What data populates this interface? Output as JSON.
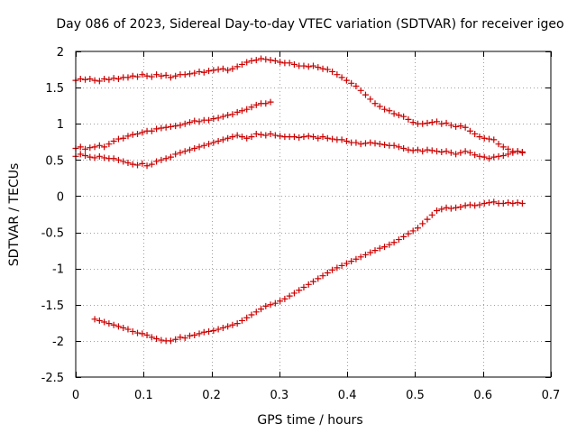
{
  "chart_data": {
    "type": "scatter",
    "title": "Day 086 of 2023, Sidereal Day-to-day VTEC variation (SDTVAR) for receiver igeo",
    "xlabel": "GPS time / hours",
    "ylabel": "SDTVAR / TECUs",
    "xlim": [
      0,
      0.7
    ],
    "ylim": [
      -2.5,
      2
    ],
    "xticks": [
      0,
      0.1,
      0.2,
      0.3,
      0.4,
      0.5,
      0.6,
      0.7
    ],
    "yticks": [
      -2.5,
      -2,
      -1.5,
      -1,
      -0.5,
      0,
      0.5,
      1,
      1.5,
      2
    ],
    "xtick_labels": [
      "0",
      "0.1",
      "0.2",
      "0.3",
      "0.4",
      "0.5",
      "0.6",
      "0.7"
    ],
    "ytick_labels": [
      "-2.5",
      "-2",
      "-1.5",
      "-1",
      "-0.5",
      "0",
      "0.5",
      "1",
      "1.5",
      "2"
    ],
    "grid": true,
    "marker": "+",
    "color": "#cc0000",
    "series": [
      {
        "name": "series-1",
        "x": [
          0.0,
          0.007,
          0.014,
          0.021,
          0.028,
          0.035,
          0.042,
          0.049,
          0.056,
          0.063,
          0.07,
          0.077,
          0.084,
          0.091,
          0.098,
          0.105,
          0.112,
          0.119,
          0.126,
          0.133,
          0.14,
          0.147,
          0.154,
          0.161,
          0.168,
          0.175,
          0.182,
          0.189,
          0.196,
          0.203,
          0.21,
          0.217,
          0.224,
          0.231,
          0.238,
          0.245,
          0.252,
          0.259,
          0.266,
          0.273,
          0.28,
          0.287,
          0.294,
          0.301,
          0.308,
          0.315,
          0.322,
          0.329,
          0.336,
          0.343,
          0.35,
          0.357,
          0.364,
          0.371,
          0.378,
          0.385,
          0.392,
          0.399,
          0.406,
          0.413,
          0.42,
          0.427,
          0.434,
          0.441,
          0.448,
          0.455,
          0.462,
          0.469,
          0.476,
          0.483,
          0.49,
          0.497,
          0.504,
          0.511,
          0.518,
          0.525,
          0.532,
          0.539,
          0.546,
          0.553,
          0.56,
          0.567,
          0.574,
          0.581,
          0.588,
          0.595,
          0.602,
          0.609,
          0.616,
          0.623,
          0.63,
          0.637,
          0.644,
          0.651,
          0.658
        ],
        "y": [
          1.6,
          1.62,
          1.61,
          1.62,
          1.6,
          1.59,
          1.62,
          1.61,
          1.63,
          1.62,
          1.64,
          1.64,
          1.66,
          1.65,
          1.68,
          1.66,
          1.65,
          1.68,
          1.66,
          1.67,
          1.64,
          1.66,
          1.68,
          1.68,
          1.69,
          1.7,
          1.72,
          1.71,
          1.73,
          1.74,
          1.75,
          1.76,
          1.74,
          1.76,
          1.79,
          1.82,
          1.85,
          1.87,
          1.88,
          1.9,
          1.89,
          1.88,
          1.87,
          1.85,
          1.84,
          1.84,
          1.82,
          1.8,
          1.8,
          1.79,
          1.8,
          1.78,
          1.76,
          1.75,
          1.72,
          1.68,
          1.64,
          1.6,
          1.56,
          1.52,
          1.46,
          1.4,
          1.34,
          1.28,
          1.24,
          1.2,
          1.18,
          1.14,
          1.12,
          1.1,
          1.06,
          1.02,
          1.0,
          1.0,
          1.01,
          1.02,
          1.03,
          1.0,
          1.01,
          0.98,
          0.96,
          0.97,
          0.95,
          0.9,
          0.86,
          0.82,
          0.8,
          0.79,
          0.78,
          0.72,
          0.68,
          0.65,
          0.62,
          0.62,
          0.61
        ]
      },
      {
        "name": "series-2",
        "x": [
          0.0,
          0.007,
          0.014,
          0.021,
          0.028,
          0.035,
          0.042,
          0.049,
          0.056,
          0.063,
          0.07,
          0.077,
          0.084,
          0.091,
          0.098,
          0.105,
          0.112,
          0.119,
          0.126,
          0.133,
          0.14,
          0.147,
          0.154,
          0.161,
          0.168,
          0.175,
          0.182,
          0.189,
          0.196,
          0.203,
          0.21,
          0.217,
          0.224,
          0.231,
          0.238,
          0.245,
          0.252,
          0.259,
          0.266,
          0.273,
          0.28,
          0.287
        ],
        "y": [
          0.66,
          0.68,
          0.65,
          0.67,
          0.68,
          0.7,
          0.68,
          0.72,
          0.76,
          0.79,
          0.8,
          0.83,
          0.85,
          0.86,
          0.88,
          0.9,
          0.9,
          0.93,
          0.94,
          0.95,
          0.96,
          0.97,
          0.98,
          1.0,
          1.02,
          1.04,
          1.03,
          1.05,
          1.05,
          1.07,
          1.08,
          1.1,
          1.12,
          1.13,
          1.16,
          1.18,
          1.2,
          1.23,
          1.26,
          1.28,
          1.28,
          1.3
        ]
      },
      {
        "name": "series-3",
        "x": [
          0.0,
          0.007,
          0.014,
          0.021,
          0.028,
          0.035,
          0.042,
          0.049,
          0.056,
          0.063,
          0.07,
          0.077,
          0.084,
          0.091,
          0.098,
          0.105,
          0.112,
          0.119,
          0.126,
          0.133,
          0.14,
          0.147,
          0.154,
          0.161,
          0.168,
          0.175,
          0.182,
          0.189,
          0.196,
          0.203,
          0.21,
          0.217,
          0.224,
          0.231,
          0.238,
          0.245,
          0.252,
          0.259,
          0.266,
          0.273,
          0.28,
          0.287,
          0.294,
          0.301,
          0.308,
          0.315,
          0.322,
          0.329,
          0.336,
          0.343,
          0.35,
          0.357,
          0.364,
          0.371,
          0.378,
          0.385,
          0.392,
          0.399,
          0.406,
          0.413,
          0.42,
          0.427,
          0.434,
          0.441,
          0.448,
          0.455,
          0.462,
          0.469,
          0.476,
          0.483,
          0.49,
          0.497,
          0.504,
          0.511,
          0.518,
          0.525,
          0.532,
          0.539,
          0.546,
          0.553,
          0.56,
          0.567,
          0.574,
          0.581,
          0.588,
          0.595,
          0.602,
          0.609,
          0.616,
          0.623,
          0.63,
          0.637,
          0.644,
          0.651,
          0.658
        ],
        "y": [
          0.55,
          0.58,
          0.56,
          0.54,
          0.53,
          0.55,
          0.53,
          0.52,
          0.52,
          0.5,
          0.48,
          0.46,
          0.44,
          0.43,
          0.45,
          0.42,
          0.44,
          0.48,
          0.5,
          0.52,
          0.54,
          0.58,
          0.6,
          0.62,
          0.64,
          0.66,
          0.68,
          0.7,
          0.72,
          0.74,
          0.76,
          0.78,
          0.8,
          0.82,
          0.84,
          0.82,
          0.8,
          0.82,
          0.86,
          0.85,
          0.84,
          0.86,
          0.84,
          0.83,
          0.82,
          0.82,
          0.82,
          0.81,
          0.82,
          0.83,
          0.82,
          0.8,
          0.82,
          0.8,
          0.79,
          0.78,
          0.78,
          0.76,
          0.74,
          0.74,
          0.72,
          0.73,
          0.74,
          0.73,
          0.72,
          0.71,
          0.7,
          0.7,
          0.68,
          0.66,
          0.64,
          0.63,
          0.64,
          0.62,
          0.64,
          0.63,
          0.62,
          0.61,
          0.62,
          0.6,
          0.58,
          0.6,
          0.62,
          0.6,
          0.57,
          0.55,
          0.54,
          0.52,
          0.54,
          0.55,
          0.56,
          0.58,
          0.6,
          0.62,
          0.6
        ]
      },
      {
        "name": "series-4",
        "x": [
          0.028,
          0.035,
          0.042,
          0.049,
          0.056,
          0.063,
          0.07,
          0.077,
          0.084,
          0.091,
          0.098,
          0.105,
          0.112,
          0.119,
          0.126,
          0.133,
          0.14,
          0.147,
          0.154,
          0.161,
          0.168,
          0.175,
          0.182,
          0.189,
          0.196,
          0.203,
          0.21,
          0.217,
          0.224,
          0.231,
          0.238,
          0.245,
          0.252,
          0.259,
          0.266,
          0.273,
          0.28,
          0.287,
          0.294,
          0.301,
          0.308,
          0.315,
          0.322,
          0.329,
          0.336,
          0.343,
          0.35,
          0.357,
          0.364,
          0.371,
          0.378,
          0.385,
          0.392,
          0.399,
          0.406,
          0.413,
          0.42,
          0.427,
          0.434,
          0.441,
          0.448,
          0.455,
          0.462,
          0.469,
          0.476,
          0.483,
          0.49,
          0.497,
          0.504,
          0.511,
          0.518,
          0.525,
          0.532,
          0.539,
          0.546,
          0.553,
          0.56,
          0.567,
          0.574,
          0.581,
          0.588,
          0.595,
          0.602,
          0.609,
          0.616,
          0.623,
          0.63,
          0.637,
          0.644,
          0.651,
          0.658
        ],
        "y": [
          -1.7,
          -1.72,
          -1.74,
          -1.76,
          -1.78,
          -1.8,
          -1.82,
          -1.84,
          -1.87,
          -1.89,
          -1.9,
          -1.92,
          -1.95,
          -1.97,
          -1.99,
          -2.0,
          -2.0,
          -1.98,
          -1.95,
          -1.96,
          -1.93,
          -1.92,
          -1.9,
          -1.88,
          -1.87,
          -1.86,
          -1.84,
          -1.82,
          -1.8,
          -1.78,
          -1.76,
          -1.72,
          -1.68,
          -1.64,
          -1.6,
          -1.56,
          -1.52,
          -1.5,
          -1.48,
          -1.45,
          -1.42,
          -1.38,
          -1.34,
          -1.3,
          -1.26,
          -1.22,
          -1.18,
          -1.14,
          -1.1,
          -1.06,
          -1.02,
          -0.99,
          -0.96,
          -0.93,
          -0.9,
          -0.87,
          -0.84,
          -0.81,
          -0.78,
          -0.75,
          -0.72,
          -0.7,
          -0.67,
          -0.64,
          -0.6,
          -0.56,
          -0.52,
          -0.48,
          -0.44,
          -0.38,
          -0.32,
          -0.26,
          -0.2,
          -0.18,
          -0.16,
          -0.17,
          -0.16,
          -0.15,
          -0.13,
          -0.12,
          -0.13,
          -0.12,
          -0.1,
          -0.09,
          -0.08,
          -0.1,
          -0.1,
          -0.09,
          -0.1,
          -0.09,
          -0.1
        ]
      }
    ]
  }
}
